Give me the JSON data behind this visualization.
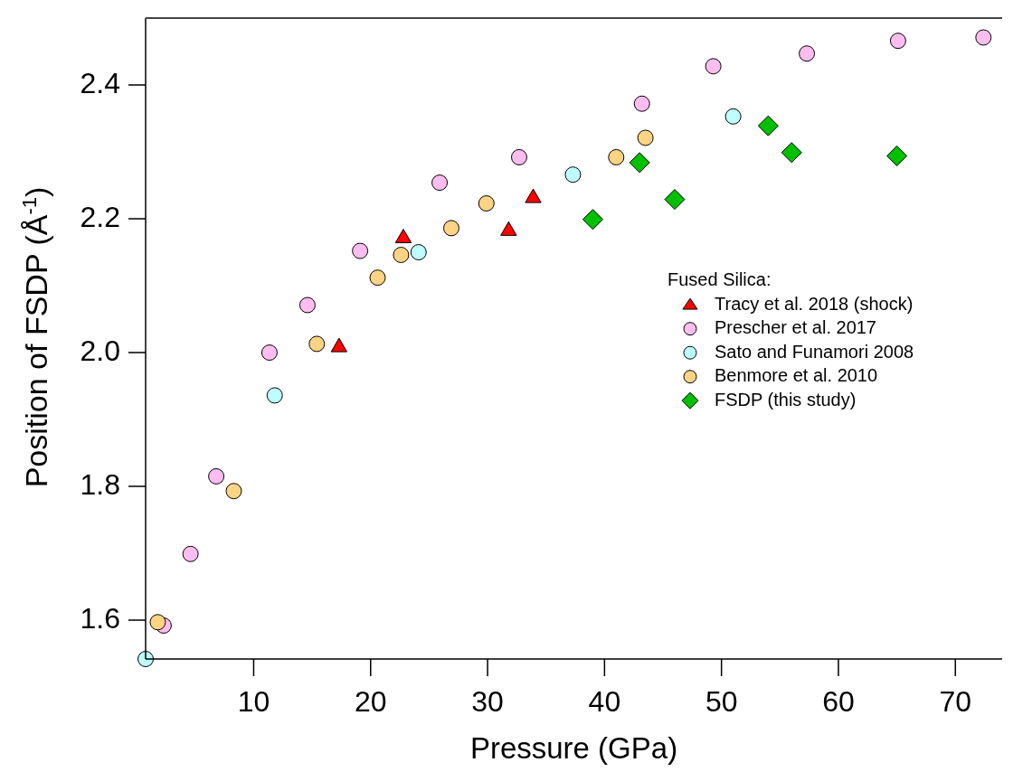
{
  "chart_data": {
    "type": "scatter",
    "xlabel": "Pressure (GPa)",
    "ylabel": "Position of FSDP (Å$^{-1}$)",
    "legend_title": "Fused Silica:",
    "legend": "right",
    "grid": false,
    "xlim": [
      0.76,
      74
    ],
    "xticks": [
      10,
      20,
      30,
      40,
      50,
      60,
      70
    ],
    "ylim": [
      1.542,
      2.5
    ],
    "yticks": [
      1.6,
      1.8,
      {
        "value": 2,
        "label": "2.0"
      },
      2.2,
      2.4
    ],
    "series": [
      {
        "name": "Tracy et al. 2018 (shock)",
        "color": "#ff0000",
        "marker": "triangle",
        "x": [
          17.3,
          22.8,
          31.8,
          33.9
        ],
        "values": [
          2.008,
          2.171,
          2.182,
          2.231
        ]
      },
      {
        "name": "Prescher et al. 2017",
        "color": "#fdbdef",
        "marker": "circle",
        "x": [
          2.3,
          4.6,
          6.8,
          11.35,
          14.6,
          19.1,
          25.9,
          32.7,
          43.2,
          49.3,
          57.3,
          65.1,
          72.4
        ],
        "values": [
          1.592,
          1.699,
          1.815,
          2.0,
          2.071,
          2.152,
          2.254,
          2.292,
          2.372,
          2.428,
          2.447,
          2.466,
          2.471
        ]
      },
      {
        "name": "Sato and Funamori 2008",
        "color": "#bdfdfd",
        "marker": "circle",
        "x": [
          0.76,
          11.8,
          24.1,
          37.3,
          51.0
        ],
        "values": [
          1.542,
          1.936,
          2.15,
          2.266,
          2.353
        ]
      },
      {
        "name": "Benmore et al. 2010",
        "color": "#fdd384",
        "marker": "circle",
        "x": [
          1.8,
          8.3,
          15.4,
          20.6,
          22.6,
          26.9,
          29.9,
          41.0,
          43.5
        ],
        "values": [
          1.597,
          1.793,
          2.013,
          2.112,
          2.146,
          2.186,
          2.223,
          2.292,
          2.321
        ]
      },
      {
        "name": "FSDP (this study)",
        "color": "#00c000",
        "marker": "diamond",
        "x": [
          39.0,
          43.0,
          46.0,
          54.0,
          56.0,
          65.0
        ],
        "values": [
          2.199,
          2.284,
          2.229,
          2.339,
          2.299,
          2.294
        ]
      }
    ]
  }
}
